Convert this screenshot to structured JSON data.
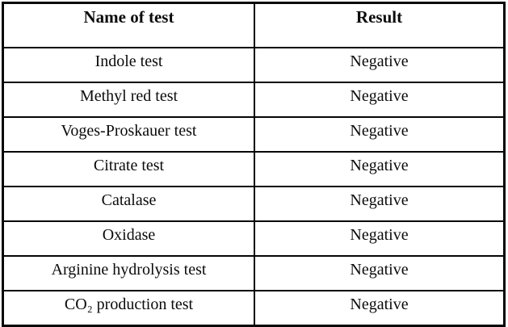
{
  "table": {
    "headers": [
      "Name of test",
      "Result"
    ],
    "rows": [
      {
        "name": "Indole test",
        "result": "Negative"
      },
      {
        "name": "Methyl red test",
        "result": "Negative"
      },
      {
        "name": "Voges-Proskauer test",
        "result": "Negative"
      },
      {
        "name": "Citrate test",
        "result": "Negative"
      },
      {
        "name": "Catalase",
        "result": "Negative"
      },
      {
        "name": "Oxidase",
        "result": "Negative"
      },
      {
        "name": "Arginine hydrolysis test",
        "result": "Negative"
      },
      {
        "name": "CO₂ production test",
        "result": "Negative"
      }
    ],
    "colors": {
      "border": "#050505",
      "text": "#0b0b0b",
      "background": "#ffffff"
    }
  }
}
